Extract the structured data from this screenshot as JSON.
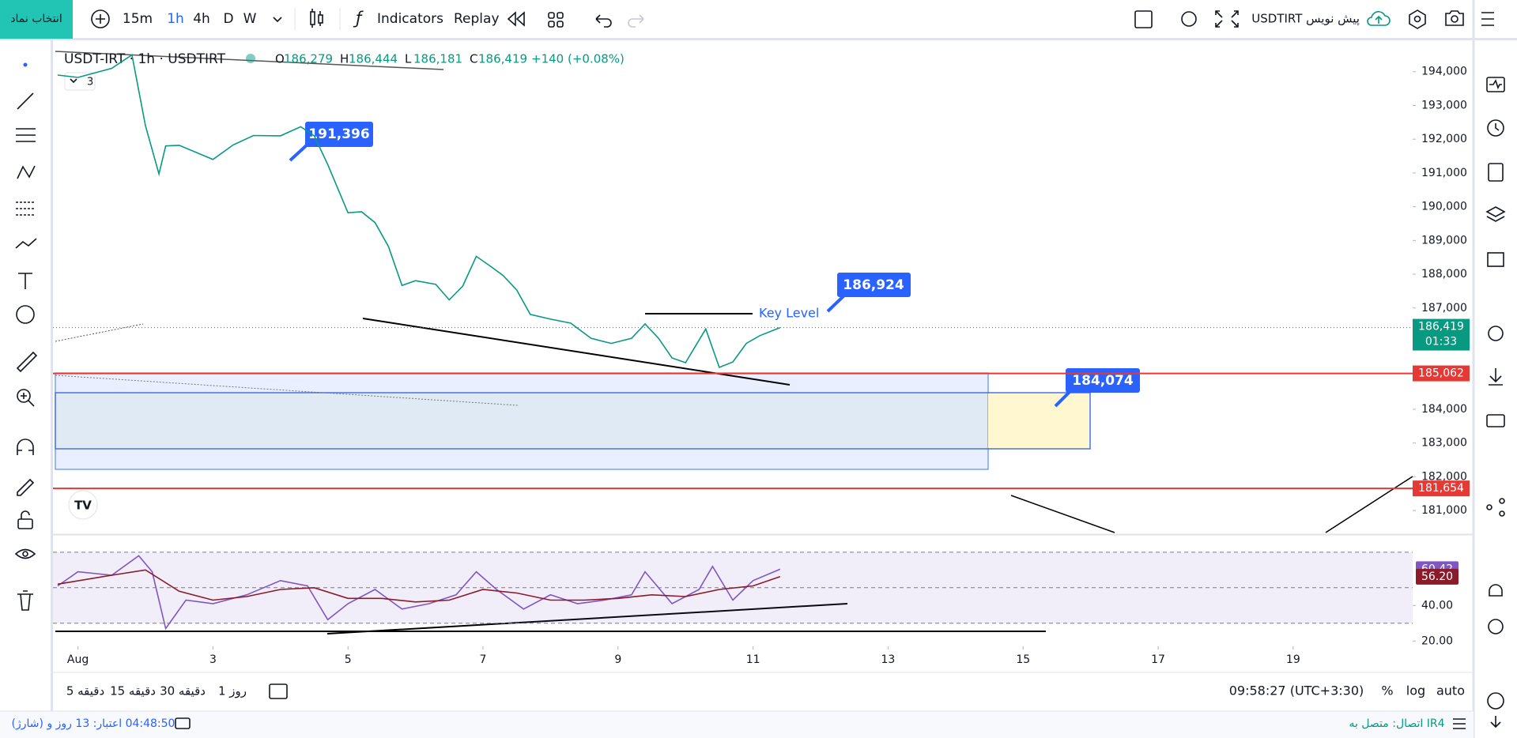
{
  "toolbar": {
    "symbol_button": "انتخاب نماد",
    "intervals": [
      "15m",
      "1h",
      "4h",
      "D",
      "W"
    ],
    "indicators": "Indicators",
    "replay": "Replay",
    "layout_name": "USDTIRT پیش نویس"
  },
  "legend": {
    "symbol": "USDT-IRT · 1h · USDTIRT",
    "ohlc": [
      {
        "key": "O",
        "value": "186,279"
      },
      {
        "key": "H",
        "value": "186,444"
      },
      {
        "key": "L",
        "value": "186,181"
      },
      {
        "key": "C",
        "value": "186,419"
      }
    ],
    "change": "+140 (+0.08%)",
    "indicator_count": "3"
  },
  "annotations": {
    "label_1": "191,396",
    "label_2": "186,924",
    "label_3": "184,074",
    "key_level": "Key Level"
  },
  "chart_data": [
    {
      "type": "line",
      "color": "#089981",
      "x": [
        0.7,
        1.0,
        1.5,
        1.8,
        2.0,
        2.2,
        2.3,
        2.5,
        3.0,
        3.3,
        3.6,
        4.0,
        4.3,
        4.5,
        4.7,
        5.0,
        5.2,
        5.4,
        5.6,
        5.8,
        6.0,
        6.3,
        6.5,
        6.7,
        6.9,
        7.1,
        7.3,
        7.5,
        7.7,
        8.0,
        8.3,
        8.6,
        8.9,
        9.2,
        9.4,
        9.6,
        9.8,
        10.0,
        10.3,
        10.5,
        10.7,
        10.9,
        11.1,
        11.4
      ],
      "values": [
        193900,
        193830,
        194100,
        194500,
        192400,
        190970,
        191800,
        191820,
        191400,
        191830,
        192110,
        192100,
        192370,
        192100,
        191250,
        189820,
        189850,
        189530,
        188820,
        187670,
        187810,
        187700,
        187240,
        187650,
        188530,
        188250,
        187960,
        187530,
        186810,
        186670,
        186550,
        186100,
        185950,
        186100,
        186530,
        186100,
        185520,
        185380,
        186380,
        185240,
        185400,
        185950,
        186180,
        186419
      ],
      "xlim": [
        0.63,
        20.77
      ],
      "xticks": [
        {
          "value": 1,
          "label": "Aug"
        },
        3,
        5,
        7,
        9,
        11,
        13,
        15,
        17,
        19
      ],
      "ylim": [
        180300,
        194930
      ],
      "yticks": [
        {
          "value": 181000,
          "label": "181,000"
        },
        {
          "value": 182000,
          "label": "182,000"
        },
        {
          "value": 183000,
          "label": "183,000"
        },
        {
          "value": 184000,
          "label": "184,000"
        },
        {
          "value": 185000,
          "label": "185,000"
        },
        {
          "value": 186000,
          "label": "186,000"
        },
        {
          "value": 187000,
          "label": "187,000"
        },
        {
          "value": 188000,
          "label": "188,000"
        },
        {
          "value": 189000,
          "label": "189,000"
        },
        {
          "value": 190000,
          "label": "190,000"
        },
        {
          "value": 191000,
          "label": "191,000"
        },
        {
          "value": 192000,
          "label": "192,000"
        },
        {
          "value": 193000,
          "label": "193,000"
        },
        {
          "value": 194000,
          "label": "194,000"
        }
      ],
      "grid": false,
      "last_price": {
        "value": 186419,
        "label": "186,419",
        "countdown": "01:33",
        "color": "#089981"
      },
      "price_lines": [
        {
          "value": 185062,
          "label": "185,062",
          "color": "#e53935"
        },
        {
          "value": 181654,
          "label": "181,654",
          "color": "#e53935"
        }
      ]
    },
    {
      "type": "line",
      "series": [
        {
          "color": "#7e57c2",
          "badge": "60.42",
          "x": [
            0.7,
            1.0,
            1.5,
            1.9,
            2.1,
            2.3,
            2.6,
            3.0,
            3.5,
            4.0,
            4.4,
            4.7,
            5.0,
            5.4,
            5.8,
            6.2,
            6.6,
            6.9,
            7.2,
            7.6,
            8.0,
            8.4,
            8.8,
            9.2,
            9.4,
            9.8,
            10.2,
            10.4,
            10.7,
            11.0,
            11.4
          ],
          "values": [
            51,
            59,
            57,
            68,
            59,
            27,
            43,
            41,
            46,
            54,
            51,
            32,
            41,
            49,
            38,
            41,
            46,
            59,
            49,
            38,
            46,
            41,
            43,
            46,
            59,
            41,
            49,
            62,
            43,
            54,
            60.42
          ]
        },
        {
          "color": "#8b1a2b",
          "badge": "56.20",
          "x": [
            0.7,
            1.5,
            2.0,
            2.5,
            3.0,
            3.5,
            4.0,
            4.5,
            5.0,
            5.5,
            6.0,
            6.5,
            7.0,
            7.5,
            8.0,
            8.5,
            9.0,
            9.5,
            10.0,
            10.5,
            11.0,
            11.4
          ],
          "values": [
            52,
            57,
            60,
            48,
            43,
            45,
            49,
            50,
            44,
            44,
            42,
            43,
            49,
            47,
            43,
            43,
            44,
            46,
            45,
            49,
            51,
            56.2
          ]
        }
      ],
      "xlim": [
        0.63,
        20.77
      ],
      "ylim": [
        17,
        79.7
      ],
      "yticks": [
        {
          "value": 20,
          "label": "20.00"
        },
        {
          "value": 40,
          "label": "40.00"
        }
      ],
      "levels": [
        30,
        50,
        70
      ]
    }
  ],
  "bottom_bar": {
    "ranges": [
      "5 دقیقه",
      "15 دقیقه",
      "30 دقیقه",
      "1 روز"
    ],
    "clock": "09:58:27 (UTC+3:30)",
    "percent": "%",
    "log": "log",
    "auto": "auto"
  },
  "status_bar": {
    "credit": "(شارژ) 04:48:50 اعتبار: 13 روز و",
    "connection": "اتصال: متصل به IR4"
  }
}
